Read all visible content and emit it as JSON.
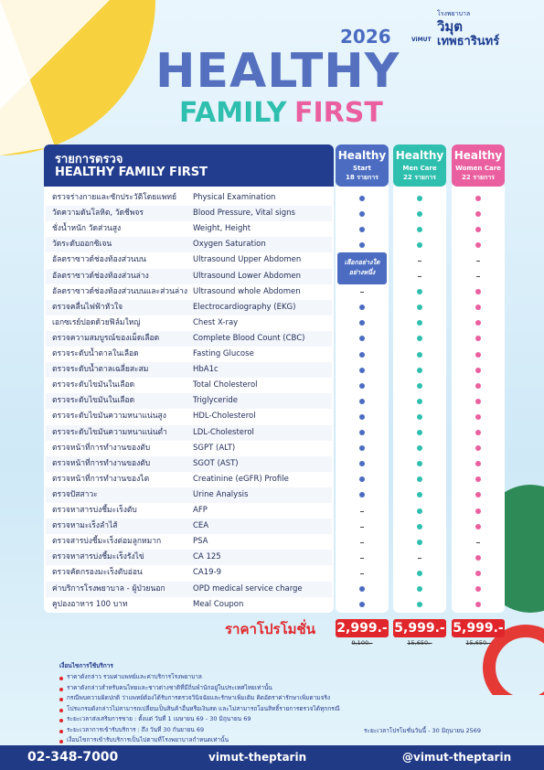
{
  "logo": {
    "small": "โรงพยาบาล",
    "name": "วิมุต",
    "sub": "เทพธารินทร์",
    "brand": "ViMUT"
  },
  "title": {
    "year": "2026",
    "line1": "HEALTHY",
    "line2a": "FAMILY",
    "line2b": "FIRST"
  },
  "table": {
    "heading1": "รายการตรวจ",
    "heading2": "HEALTHY FAMILY FIRST",
    "packages": [
      {
        "line1": "Healthy",
        "line2": "Start",
        "line3": "18 รายการ",
        "color": "#4b6cc1",
        "price": "2,999.-",
        "original": "9,100.-"
      },
      {
        "line1": "Healthy",
        "line2": "Men Care",
        "line3": "22 รายการ",
        "color": "#2fbfae",
        "price": "5,999.-",
        "original": "15,650.-"
      },
      {
        "line1": "Healthy",
        "line2": "Women Care",
        "line3": "22 รายการ",
        "color": "#ea5f9f",
        "price": "5,999.-",
        "original": "15,650.-"
      }
    ],
    "choice_note": [
      "เลือกอย่างใด",
      "อย่างหนึ่ง"
    ],
    "rows": [
      {
        "thai": "ตรวจร่างกายและซักประวัติโดยแพทย์",
        "english": "Physical Examination",
        "marks": [
          true,
          true,
          true
        ]
      },
      {
        "thai": "วัดความดันโลหิต, วัดชีพจร",
        "english": "Blood Pressure, Vital signs",
        "marks": [
          true,
          true,
          true
        ]
      },
      {
        "thai": "ชั่งน้ำหนัก วัดส่วนสูง",
        "english": "Weight, Height",
        "marks": [
          true,
          true,
          true
        ]
      },
      {
        "thai": "วัดระดับออกซิเจน",
        "english": "Oxygen Saturation",
        "marks": [
          true,
          true,
          true
        ]
      },
      {
        "thai": "อัลตราซาวด์ช่องท้องส่วนบน",
        "english": "Ultrasound Upper Abdomen",
        "marks": [
          null,
          false,
          false
        ]
      },
      {
        "thai": "อัลตราซาวด์ช่องท้องส่วนล่าง",
        "english": "Ultrasound Lower Abdomen",
        "marks": [
          null,
          false,
          false
        ]
      },
      {
        "thai": "อัลตราซาวด์ช่องท้องส่วนบนและส่วนล่าง",
        "english": "Ultrasound whole Abdomen",
        "marks": [
          false,
          true,
          true
        ]
      },
      {
        "thai": "ตรวจคลื่นไฟฟ้าหัวใจ",
        "english": "Electrocardiography (EKG)",
        "marks": [
          true,
          true,
          true
        ]
      },
      {
        "thai": "เอกซเรย์ปอดด้วยฟิล์มใหญ่",
        "english": "Chest X-ray",
        "marks": [
          true,
          true,
          true
        ]
      },
      {
        "thai": "ตรวจความสมบูรณ์ของเม็ดเลือด",
        "english": "Complete Blood Count (CBC)",
        "marks": [
          true,
          true,
          true
        ]
      },
      {
        "thai": "ตรวจระดับน้ำตาลในเลือด",
        "english": "Fasting Glucose",
        "marks": [
          true,
          true,
          true
        ]
      },
      {
        "thai": "ตรวจระดับน้ำตาลเฉลี่ยสะสม",
        "english": "HbA1c",
        "marks": [
          true,
          true,
          true
        ]
      },
      {
        "thai": "ตรวจระดับไขมันในเลือด",
        "english": "Total Cholesterol",
        "marks": [
          true,
          true,
          true
        ]
      },
      {
        "thai": "ตรวจระดับไขมันในเลือด",
        "english": "Triglyceride",
        "marks": [
          true,
          true,
          true
        ]
      },
      {
        "thai": "ตรวจระดับไขมันความหนาแน่นสูง",
        "english": "HDL-Cholesterol",
        "marks": [
          true,
          true,
          true
        ]
      },
      {
        "thai": "ตรวจระดับไขมันความหนาแน่นต่ำ",
        "english": "LDL-Cholesterol",
        "marks": [
          true,
          true,
          true
        ]
      },
      {
        "thai": "ตรวจหน้าที่การทำงานของตับ",
        "english": "SGPT (ALT)",
        "marks": [
          true,
          true,
          true
        ]
      },
      {
        "thai": "ตรวจหน้าที่การทำงานของตับ",
        "english": "SGOT (AST)",
        "marks": [
          true,
          true,
          true
        ]
      },
      {
        "thai": "ตรวจหน้าที่การทำงานของไต",
        "english": "Creatinine (eGFR) Profile",
        "marks": [
          true,
          true,
          true
        ]
      },
      {
        "thai": "ตรวจปัสสาวะ",
        "english": "Urine Analysis",
        "marks": [
          true,
          true,
          true
        ]
      },
      {
        "thai": "ตรวจหาสารบ่งชี้มะเร็งตับ",
        "english": "AFP",
        "marks": [
          false,
          true,
          true
        ]
      },
      {
        "thai": "ตรวจหามะเร็งลำไส้",
        "english": "CEA",
        "marks": [
          false,
          true,
          true
        ]
      },
      {
        "thai": "ตรวจสารบ่งชี้มะเร็งต่อมลูกหมาก",
        "english": "PSA",
        "marks": [
          false,
          true,
          false
        ]
      },
      {
        "thai": "ตรวจหาสารบ่งชี้มะเร็งรังไข่",
        "english": "CA 125",
        "marks": [
          false,
          false,
          true
        ]
      },
      {
        "thai": "ตรวจคัดกรองมะเร็งตับอ่อน",
        "english": "CA19-9",
        "marks": [
          false,
          true,
          true
        ]
      },
      {
        "thai": "ค่าบริการโรงพยาบาล - ผู้ป่วยนอก",
        "english": "OPD medical service charge",
        "marks": [
          true,
          true,
          true
        ]
      },
      {
        "thai": "คูปองอาหาร 100 บาท",
        "english": "Meal Coupon",
        "marks": [
          true,
          true,
          true
        ]
      }
    ],
    "price_label": "ราคาโปรโมชั่น"
  },
  "conditions": {
    "title": "เงื่อนไขการใช้บริการ",
    "items": [
      "ราคาดังกล่าว รวมค่าแพทย์และค่าบริการโรงพยาบาล",
      "ราคาดังกล่าวสำหรับคนไทยและชาวต่างชาติที่มีถิ่นพำนักอยู่ในประเทศไทยเท่านั้น",
      "กรณีพบความผิดปกติ ว่าแพทย์ต้องได้รับการตรวจวินิจฉัยและรักษาเพิ่มเติม คิดอัตราค่ารักษาเพิ่มตามจริง",
      "โปรแกรมดังกล่าวไม่สามารถเปลี่ยนเป็นสินค้าอื่นหรือเงินสด และไม่สามารถโอนสิทธิ์รายการตรวจได้ทุกกรณี",
      "ระยะเวลาส่งเสริมการขาย : ตั้งแต่ วันที่ 1 เมษายน 69 - 30 มิถุนายน 69",
      "ระยะเวลาการเข้ารับบริการ : ถึง วันที่ 30 กันยายน 69",
      "เงื่อนไขการเข้ารับบริการเป็นไปตามที่โรงพยาบาลกำหนดเท่านั้น"
    ],
    "period": "ระยะเวลาโปรโมชั่นวันนี้ - 30 มิถุนายน 2569"
  },
  "footer": {
    "phone": "02-348-7000",
    "facebook": "vimut-theptarin",
    "line": "@vimut-theptarin"
  }
}
